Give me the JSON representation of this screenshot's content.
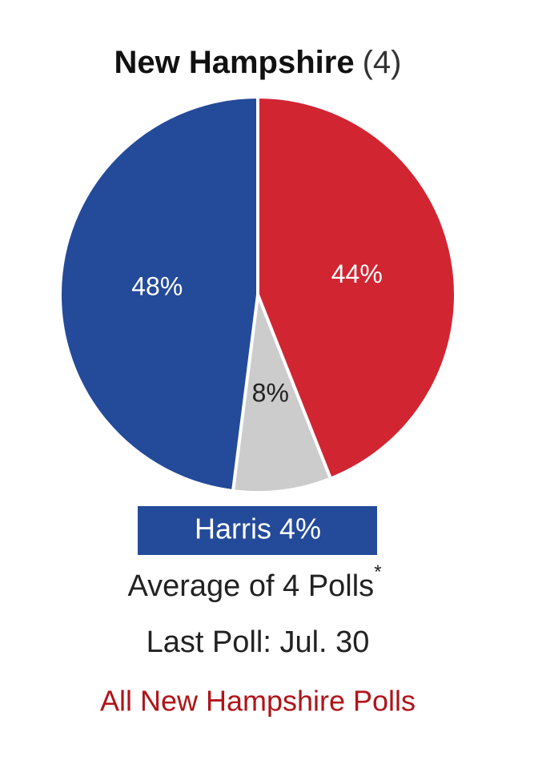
{
  "chart_data": {
    "type": "pie",
    "title": "New Hampshire",
    "subtitle": "(4)",
    "values": [
      44,
      8,
      48
    ],
    "value_labels": [
      "44%",
      "8%",
      "48%"
    ],
    "colors": [
      "#d22532",
      "#cccccc",
      "#244a9a"
    ],
    "label_colors": [
      "#ffffff",
      "#222222",
      "#ffffff"
    ]
  },
  "leader_banner": "Harris 4%",
  "average": "Average of 4 Polls",
  "footnote_mark": "*",
  "last_poll": "Last Poll: Jul. 30",
  "link": "All New Hampshire Polls"
}
